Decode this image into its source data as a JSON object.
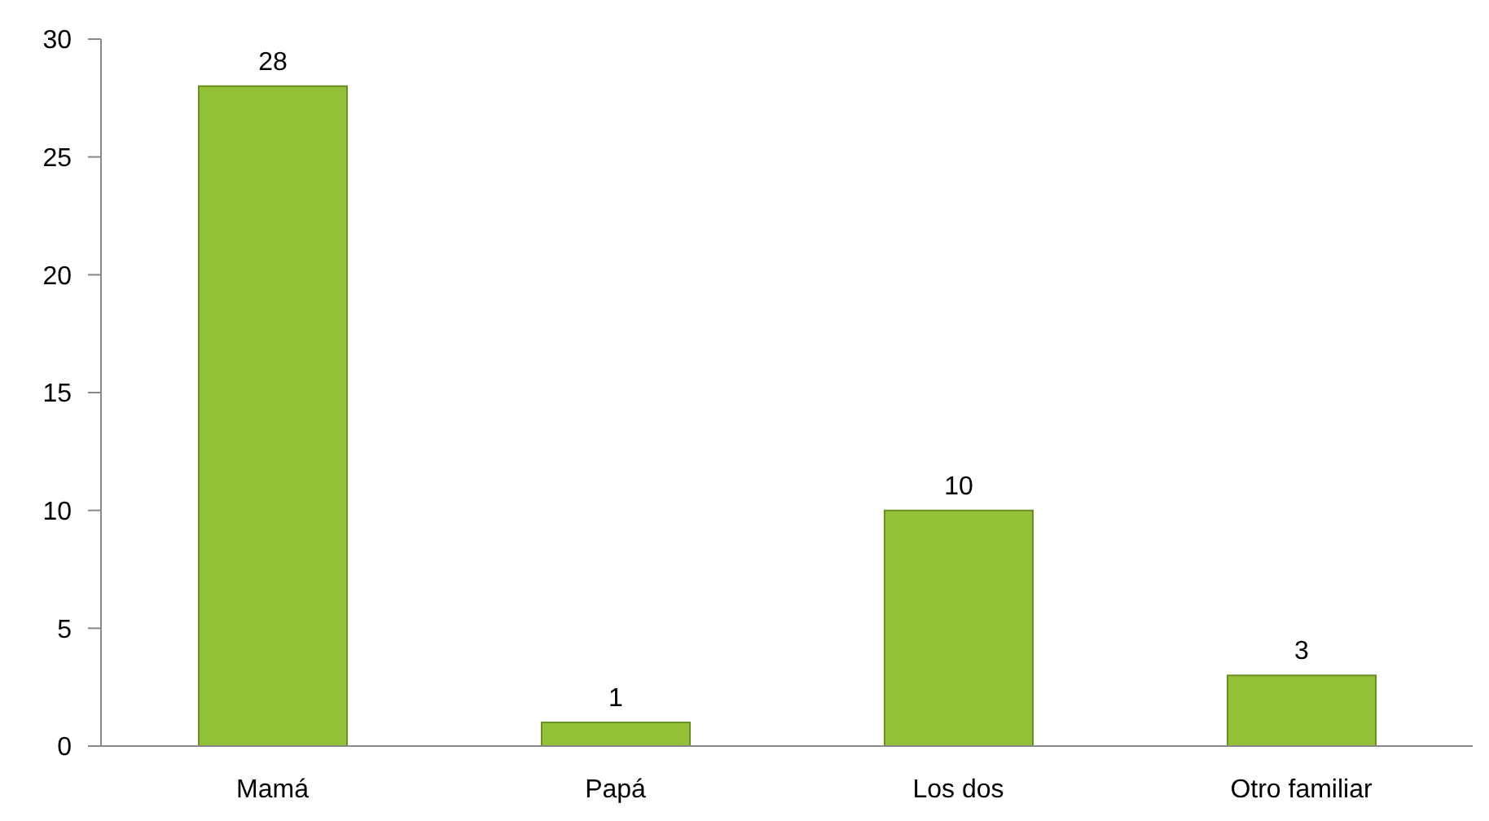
{
  "chart_data": {
    "type": "bar",
    "categories": [
      "Mamá",
      "Papá",
      "Los dos",
      "Otro familiar"
    ],
    "values": [
      28,
      1,
      10,
      3
    ],
    "color": "#92c037",
    "ylim": [
      0,
      30
    ],
    "yticks": [
      0,
      5,
      10,
      15,
      20,
      25,
      30
    ],
    "data_labels": true
  }
}
